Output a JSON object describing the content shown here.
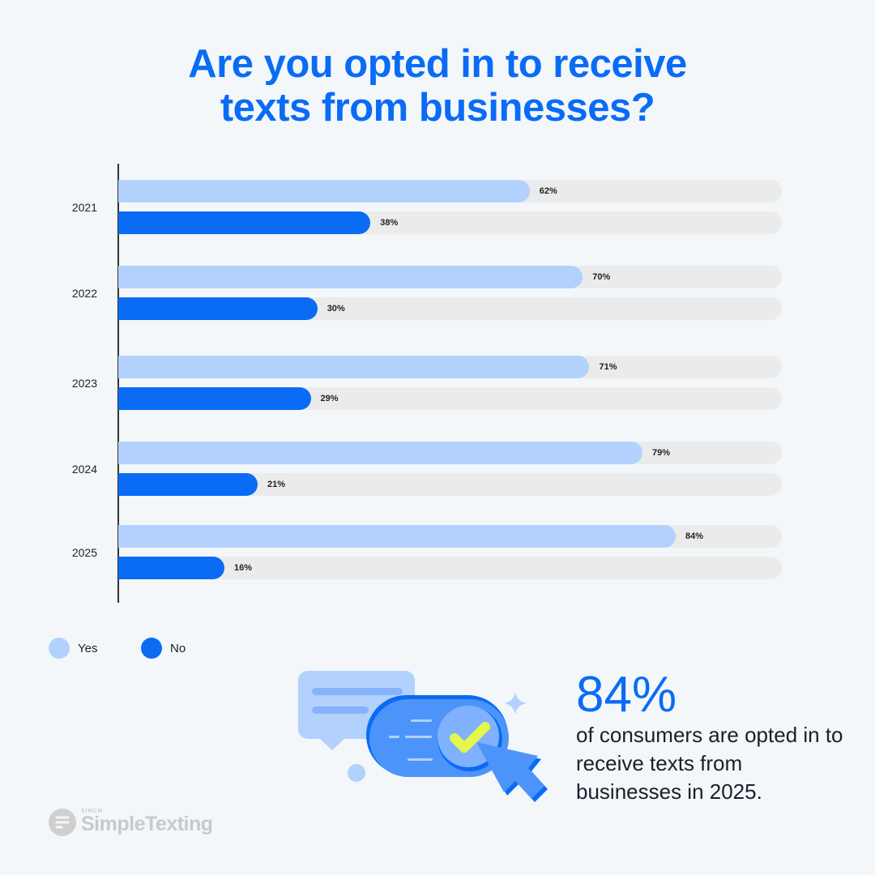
{
  "title_line1": "Are you opted in to receive",
  "title_line2": "texts from businesses?",
  "chart_data": {
    "type": "bar",
    "orientation": "horizontal",
    "categories": [
      "2021",
      "2022",
      "2023",
      "2024",
      "2025"
    ],
    "series": [
      {
        "name": "Yes",
        "values": [
          62,
          70,
          71,
          79,
          84
        ],
        "color": "#b3d1fd"
      },
      {
        "name": "No",
        "values": [
          38,
          30,
          29,
          21,
          16
        ],
        "color": "#0a6cf5"
      }
    ],
    "value_labels_suffix": "%",
    "xlim": [
      0,
      100
    ],
    "track_color": "#ebebeb",
    "legend": "bottom-left",
    "grid": false
  },
  "legend": {
    "yes": "Yes",
    "no": "No"
  },
  "callout": {
    "value": "84%",
    "text": "of consumers are opted in to receive texts from businesses in 2025."
  },
  "logo": {
    "brand_small": "SINCH",
    "brand": "SimpleTexting"
  }
}
